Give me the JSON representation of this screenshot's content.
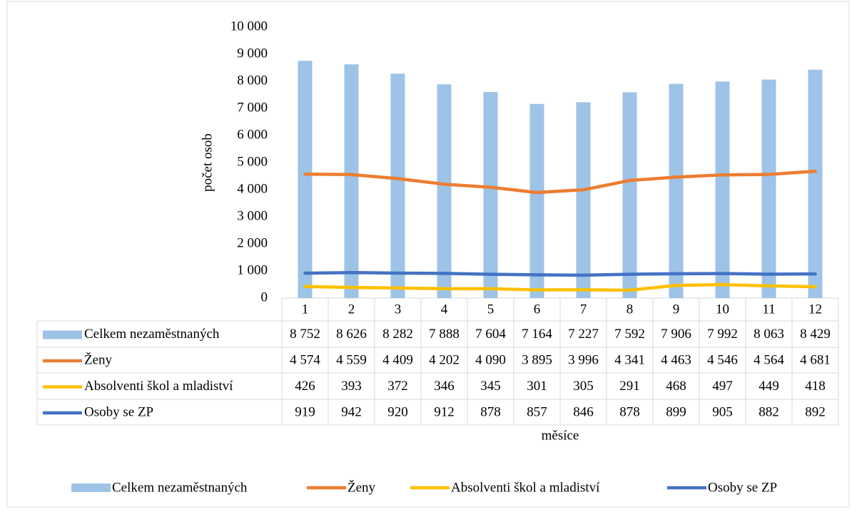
{
  "chart_data": {
    "type": "bar",
    "y_label": "počet osob",
    "x_label": "měsíce",
    "categories": [
      "1",
      "2",
      "3",
      "4",
      "5",
      "6",
      "7",
      "8",
      "9",
      "10",
      "11",
      "12"
    ],
    "series": [
      {
        "name": "Celkem nezaměstnaných",
        "type": "bar",
        "color": "#9dc3e6",
        "values": [
          8752,
          8626,
          8282,
          7888,
          7604,
          7164,
          7227,
          7592,
          7906,
          7992,
          8063,
          8429
        ],
        "value_labels": [
          "8 752",
          "8 626",
          "8 282",
          "7 888",
          "7 604",
          "7 164",
          "7 227",
          "7 592",
          "7 906",
          "7 992",
          "8 063",
          "8 429"
        ]
      },
      {
        "name": "Ženy",
        "type": "line",
        "color": "#ed7d31",
        "values": [
          4574,
          4559,
          4409,
          4202,
          4090,
          3895,
          3996,
          4341,
          4463,
          4546,
          4564,
          4681
        ],
        "value_labels": [
          "4 574",
          "4 559",
          "4 409",
          "4 202",
          "4 090",
          "3 895",
          "3 996",
          "4 341",
          "4 463",
          "4 546",
          "4 564",
          "4 681"
        ]
      },
      {
        "name": "Absolventi škol a mladiství",
        "type": "line",
        "color": "#ffc000",
        "values": [
          426,
          393,
          372,
          346,
          345,
          301,
          305,
          291,
          468,
          497,
          449,
          418
        ]
      },
      {
        "name": "Osoby se ZP",
        "type": "line",
        "color": "#4472c4",
        "values": [
          919,
          942,
          920,
          912,
          878,
          857,
          846,
          878,
          899,
          905,
          882,
          892
        ]
      }
    ],
    "ylim": [
      0,
      10000
    ],
    "yticks": [
      0,
      {
        "value": 1000,
        "label": "1 000"
      },
      {
        "value": 2000,
        "label": "2 000"
      },
      {
        "value": 3000,
        "label": "3 000"
      },
      {
        "value": 4000,
        "label": "4 000"
      },
      {
        "value": 5000,
        "label": "5 000"
      },
      {
        "value": 6000,
        "label": "6 000"
      },
      {
        "value": 7000,
        "label": "7 000"
      },
      {
        "value": 8000,
        "label": "8 000"
      },
      {
        "value": 9000,
        "label": "9 000"
      },
      {
        "value": 10000,
        "label": "10 000"
      }
    ],
    "legend": "bottom",
    "data_table": true
  }
}
